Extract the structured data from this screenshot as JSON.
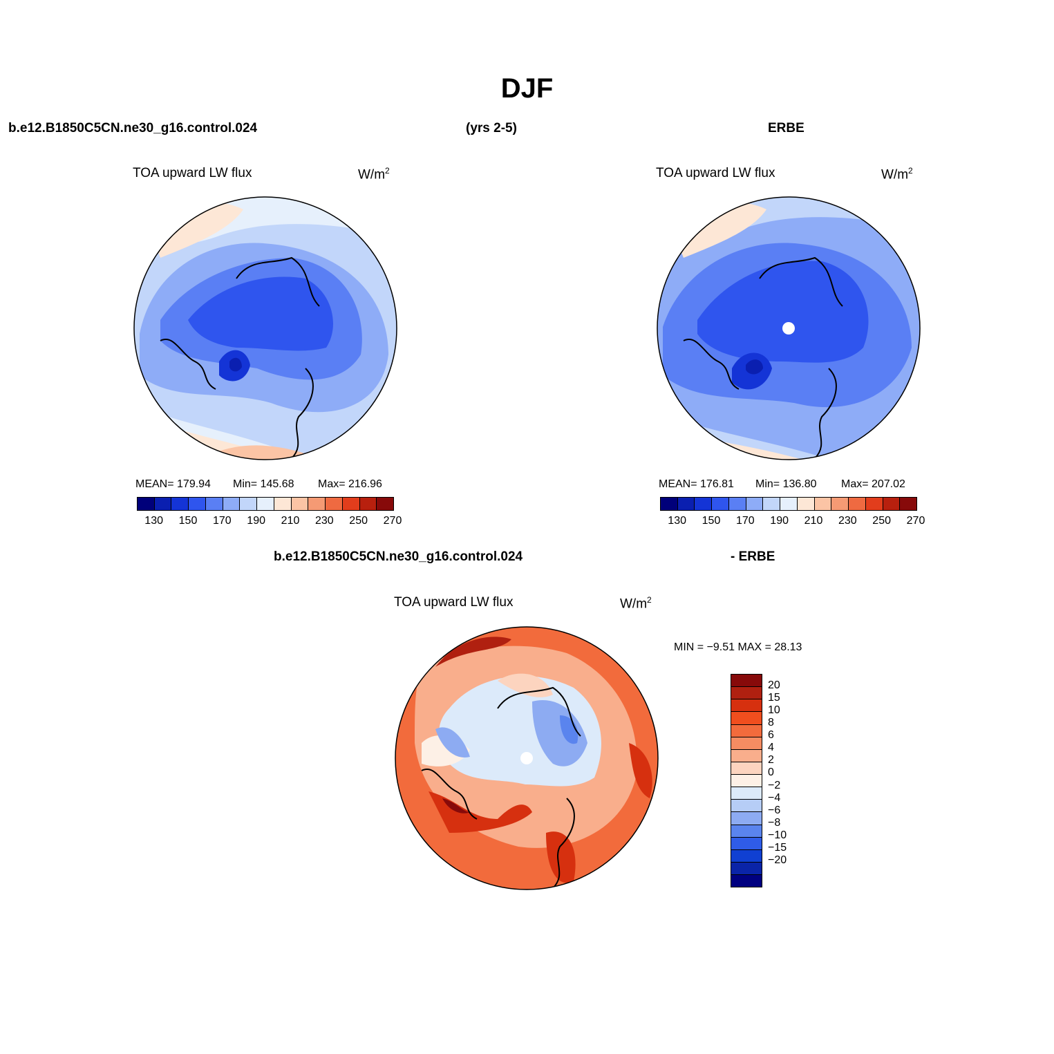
{
  "title": "DJF",
  "header": {
    "case_name": "b.e12.B1850C5CN.ne30_g16.control.024",
    "years": "(yrs 2-5)",
    "obs_name": "ERBE"
  },
  "diff_header": {
    "case_name": "b.e12.B1850C5CN.ne30_g16.control.024",
    "obs_suffix": "- ERBE"
  },
  "chart_data": [
    {
      "type": "heatmap",
      "projection": "north polar stereographic",
      "title": "TOA upward LW flux",
      "units": "W/m",
      "units_superscript": "2",
      "mean_label": "MEAN= 179.94",
      "min_label": "Min= 145.68",
      "max_label": "Max= 216.96",
      "mean": 179.94,
      "min": 145.68,
      "max": 216.96,
      "colorbar_levels": [
        130,
        140,
        150,
        160,
        170,
        180,
        190,
        200,
        210,
        220,
        230,
        240,
        250,
        260,
        270
      ],
      "colorbar_tick_labels": [
        "130",
        "150",
        "170",
        "190",
        "210",
        "230",
        "250",
        "270"
      ],
      "colorbar_colors": [
        "#00007a",
        "#0a1fb0",
        "#1434d6",
        "#2f55ee",
        "#5a7ff4",
        "#8eacf7",
        "#c2d6fa",
        "#e6f0fc",
        "#fde7d6",
        "#fbc4a5",
        "#f59a74",
        "#ef6a41",
        "#e23d1c",
        "#b8200e",
        "#870a0a"
      ],
      "pole_missing": false
    },
    {
      "type": "heatmap",
      "projection": "north polar stereographic",
      "title": "TOA upward LW flux",
      "units": "W/m",
      "units_superscript": "2",
      "mean_label": "MEAN= 176.81",
      "min_label": "Min= 136.80",
      "max_label": "Max= 207.02",
      "mean": 176.81,
      "min": 136.8,
      "max": 207.02,
      "colorbar_levels": [
        130,
        140,
        150,
        160,
        170,
        180,
        190,
        200,
        210,
        220,
        230,
        240,
        250,
        260,
        270
      ],
      "colorbar_tick_labels": [
        "130",
        "150",
        "170",
        "190",
        "210",
        "230",
        "250",
        "270"
      ],
      "colorbar_colors": [
        "#00007a",
        "#0a1fb0",
        "#1434d6",
        "#2f55ee",
        "#5a7ff4",
        "#8eacf7",
        "#c2d6fa",
        "#e6f0fc",
        "#fde7d6",
        "#fbc4a5",
        "#f59a74",
        "#ef6a41",
        "#e23d1c",
        "#b8200e",
        "#870a0a"
      ],
      "pole_missing": true
    },
    {
      "type": "heatmap",
      "projection": "north polar stereographic",
      "title": "TOA upward LW flux",
      "units": "W/m",
      "units_superscript": "2",
      "minmax_label": "MIN =   −9.51 MAX =  28.13",
      "min": -9.51,
      "max": 28.13,
      "colorbar_levels": [
        -20,
        -15,
        -10,
        -8,
        -6,
        -4,
        -2,
        0,
        2,
        4,
        6,
        8,
        10,
        15,
        20
      ],
      "colorbar_tick_labels": [
        "20",
        "15",
        "10",
        "8",
        "6",
        "4",
        "2",
        "0",
        "−2",
        "−4",
        "−6",
        "−8",
        "−10",
        "−15",
        "−20"
      ],
      "colorbar_colors_top_to_bottom": [
        "#870a0a",
        "#b02010",
        "#d6300f",
        "#f04e1e",
        "#f26b3c",
        "#f58c62",
        "#f9ae8c",
        "#fcd4bf",
        "#fdf0e6",
        "#dceafa",
        "#b6cdf6",
        "#8dabf2",
        "#5a84ee",
        "#2f5ce8",
        "#1040d2",
        "#0a24a8",
        "#000080"
      ],
      "pole_missing": true
    }
  ]
}
